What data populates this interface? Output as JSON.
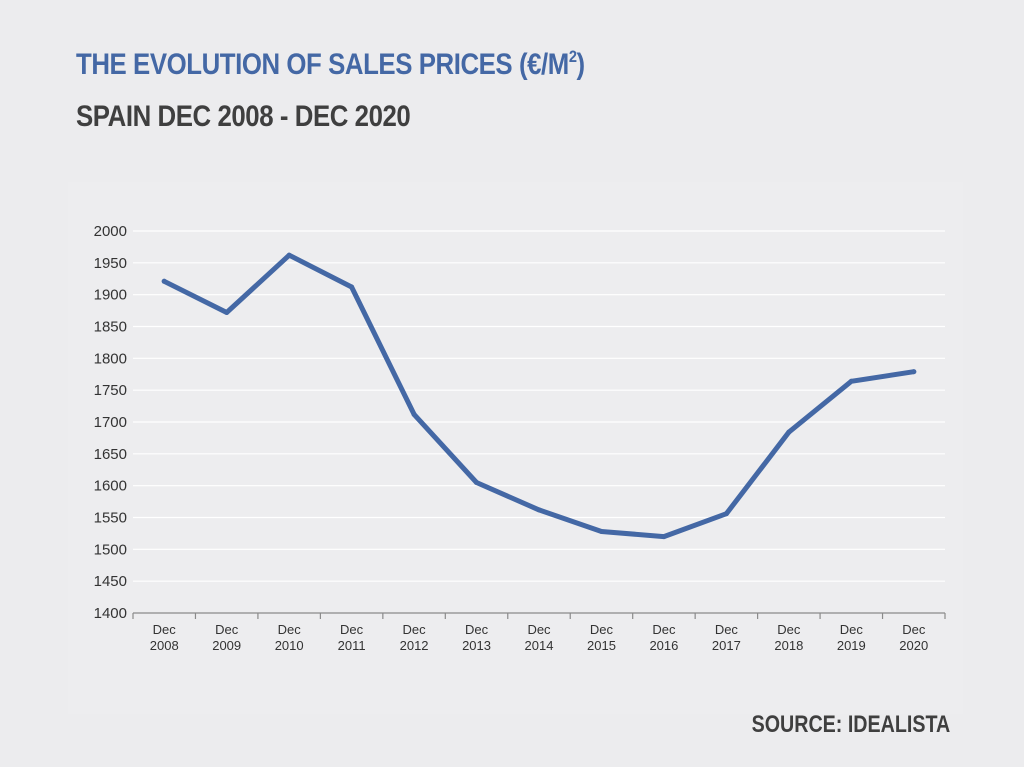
{
  "title": {
    "main": "THE EVOLUTION OF SALES PRICES (€/M",
    "superscript": "2",
    "close": ")"
  },
  "subtitle": "SPAIN DEC 2008 - DEC 2020",
  "source": "SOURCE: IDEALISTA",
  "colors": {
    "line": "#4468a5",
    "title": "#4468a5",
    "text": "#3f3f3f",
    "grid": "#ffffff",
    "axis": "#8a8a8a",
    "background": "#ececee"
  },
  "chart_data": {
    "type": "line",
    "categories": [
      [
        "Dec",
        "2008"
      ],
      [
        "Dec",
        "2009"
      ],
      [
        "Dec",
        "2010"
      ],
      [
        "Dec",
        "2011"
      ],
      [
        "Dec",
        "2012"
      ],
      [
        "Dec",
        "2013"
      ],
      [
        "Dec",
        "2014"
      ],
      [
        "Dec",
        "2015"
      ],
      [
        "Dec",
        "2016"
      ],
      [
        "Dec",
        "2017"
      ],
      [
        "Dec",
        "2018"
      ],
      [
        "Dec",
        "2019"
      ],
      [
        "Dec",
        "2020"
      ]
    ],
    "series": [
      {
        "values": [
          1921,
          1872,
          1962,
          1912,
          1712,
          1605,
          1562,
          1528,
          1520,
          1556,
          1684,
          1764,
          1779
        ]
      }
    ],
    "ylim": [
      1400,
      2000
    ],
    "yticks": [
      "1400",
      "1450",
      "1500",
      "1550",
      "1600",
      "1650",
      "1700",
      "1750",
      "1800",
      "1850",
      "1900",
      "1950",
      "2000"
    ],
    "grid": true,
    "legend": "none"
  }
}
